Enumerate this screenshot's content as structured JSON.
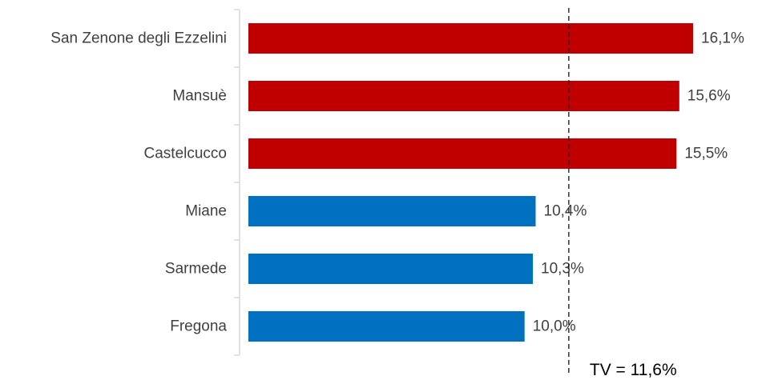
{
  "chart_data": {
    "type": "bar",
    "orientation": "horizontal",
    "categories": [
      "San Zenone degli Ezzelini",
      "Mansuè",
      "Castelcucco",
      "Miane",
      "Sarmede",
      "Fregona"
    ],
    "values": [
      16.1,
      15.6,
      15.5,
      10.4,
      10.3,
      10.0
    ],
    "value_labels": [
      "16,1%",
      "15,6%",
      "15,5%",
      "10,4%",
      "10,3%",
      "10,0%"
    ],
    "colors": [
      "#c00000",
      "#c00000",
      "#c00000",
      "#0070c0",
      "#0070c0",
      "#0070c0"
    ],
    "reference_line": {
      "value": 11.6,
      "label": "TV = 11,6%"
    },
    "xlim": [
      0,
      16.1
    ],
    "grid": false,
    "legend": "none"
  }
}
